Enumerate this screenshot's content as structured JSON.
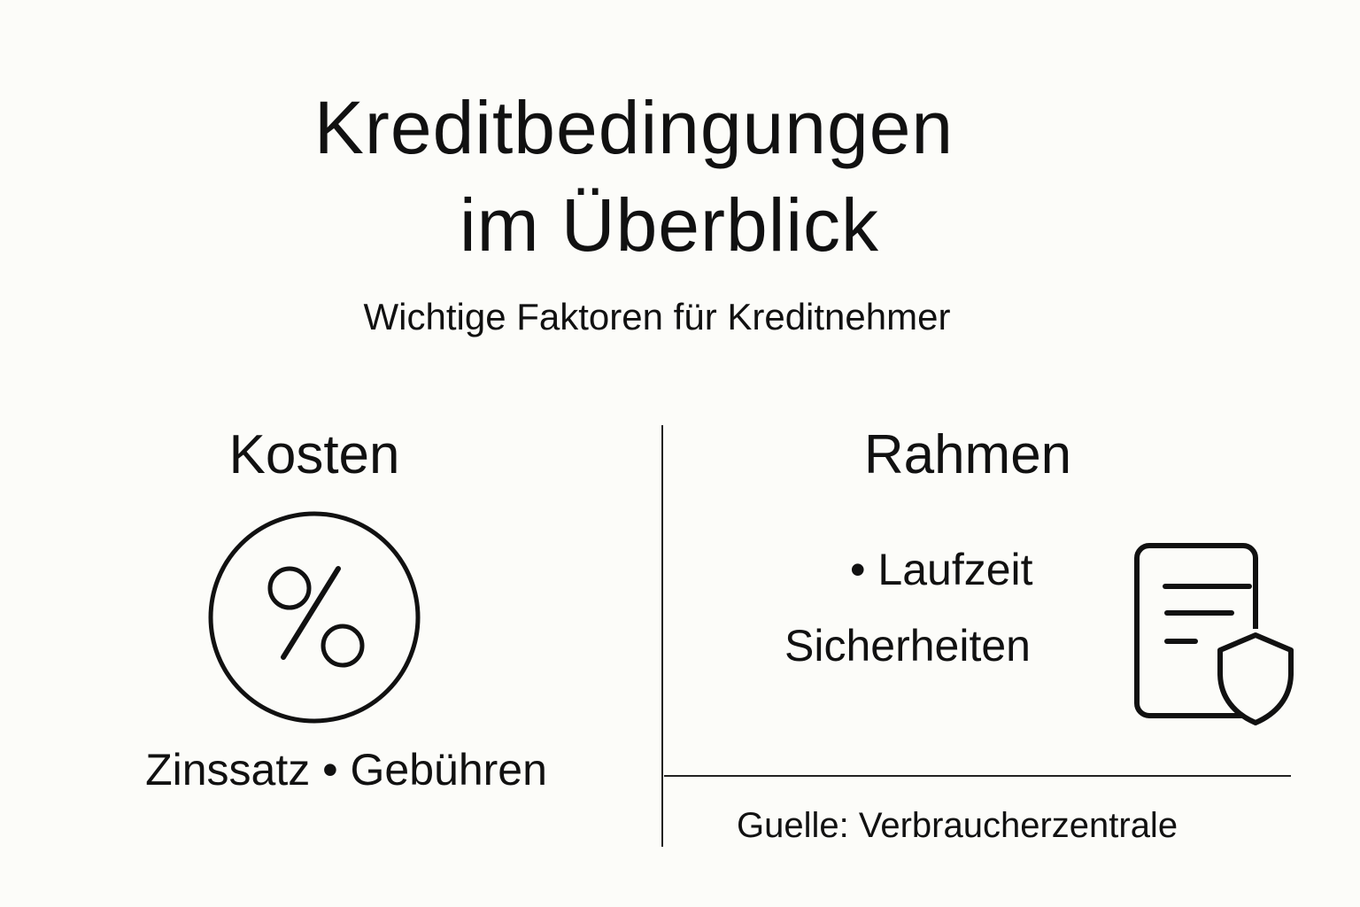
{
  "title": {
    "line1": "Kreditbedingungen",
    "line2": "im Überblick"
  },
  "subtitle": "Wichtige Faktoren für Kreditnehmer",
  "left": {
    "heading": "Kosten",
    "icon": "percent-circle-icon",
    "items_text": "Zinssatz  •  Gebühren"
  },
  "right": {
    "heading": "Rahmen",
    "item1": "•  Laufzeit",
    "item2": "Sicherheiten",
    "icon": "document-shield-icon"
  },
  "source": "Guelle: Verbraucherzentrale",
  "colors": {
    "background": "#fcfcf9",
    "ink": "#111111"
  }
}
